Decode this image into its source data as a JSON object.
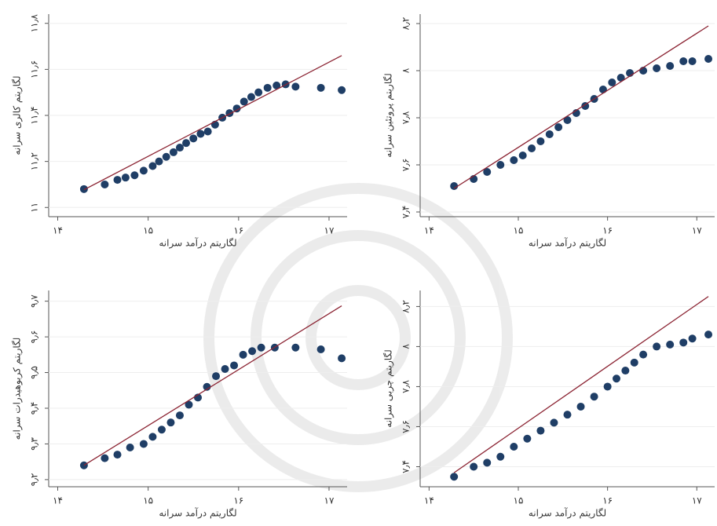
{
  "chart_data": [
    {
      "type": "scatter",
      "x_label": "لگاریتم درآمد سرانه",
      "y_label": "لگاریتم کالری سرانه",
      "xlim": [
        13.9,
        17.2
      ],
      "ylim": [
        10.96,
        11.84
      ],
      "xticks": [
        {
          "value": 14,
          "label": "۱۴"
        },
        {
          "value": 15,
          "label": "۱۵"
        },
        {
          "value": 16,
          "label": "۱۶"
        },
        {
          "value": 17,
          "label": "۱۷"
        }
      ],
      "yticks": [
        {
          "value": 11,
          "label": "۱۱"
        },
        {
          "value": 11.2,
          "label": "۱۱٫۲"
        },
        {
          "value": 11.4,
          "label": "۱۱٫۴"
        },
        {
          "value": 11.6,
          "label": "۱۱٫۶"
        },
        {
          "value": 11.8,
          "label": "۱۱٫۸"
        }
      ],
      "grid": true,
      "color": "#1f3e66",
      "x": [
        14.29,
        14.52,
        14.66,
        14.75,
        14.85,
        14.95,
        15.05,
        15.12,
        15.2,
        15.28,
        15.35,
        15.42,
        15.5,
        15.58,
        15.66,
        15.74,
        15.82,
        15.9,
        15.98,
        16.06,
        16.14,
        16.22,
        16.32,
        16.42,
        16.52,
        16.63,
        16.91,
        17.14
      ],
      "values": [
        11.08,
        11.1,
        11.12,
        11.13,
        11.14,
        11.16,
        11.18,
        11.2,
        11.22,
        11.24,
        11.26,
        11.28,
        11.3,
        11.32,
        11.33,
        11.36,
        11.39,
        11.41,
        11.43,
        11.46,
        11.48,
        11.5,
        11.52,
        11.53,
        11.535,
        11.525,
        11.52,
        11.51
      ],
      "fit": {
        "color": "#8b2332",
        "x": [
          14.29,
          17.14
        ],
        "values": [
          11.077,
          11.66
        ]
      }
    },
    {
      "type": "scatter",
      "x_label": "لگاریتم درآمد سرانه",
      "y_label": "لگاریتم پروتئین سرانه",
      "xlim": [
        13.9,
        17.2
      ],
      "ylim": [
        7.38,
        8.24
      ],
      "xticks": [
        {
          "value": 14,
          "label": "۱۴"
        },
        {
          "value": 15,
          "label": "۱۵"
        },
        {
          "value": 16,
          "label": "۱۶"
        },
        {
          "value": 17,
          "label": "۱۷"
        }
      ],
      "yticks": [
        {
          "value": 7.4,
          "label": "۷٫۴"
        },
        {
          "value": 7.6,
          "label": "۷٫۶"
        },
        {
          "value": 7.8,
          "label": "۷٫۸"
        },
        {
          "value": 8,
          "label": "۸"
        },
        {
          "value": 8.2,
          "label": "۸٫۲"
        }
      ],
      "grid": true,
      "color": "#1f3e66",
      "x": [
        14.28,
        14.5,
        14.65,
        14.8,
        14.95,
        15.05,
        15.15,
        15.25,
        15.35,
        15.45,
        15.55,
        15.65,
        15.75,
        15.85,
        15.95,
        16.05,
        16.15,
        16.25,
        16.4,
        16.55,
        16.7,
        16.85,
        16.95,
        17.13
      ],
      "values": [
        7.51,
        7.54,
        7.57,
        7.6,
        7.62,
        7.64,
        7.67,
        7.7,
        7.73,
        7.76,
        7.79,
        7.82,
        7.85,
        7.88,
        7.92,
        7.95,
        7.97,
        7.99,
        8.0,
        8.01,
        8.02,
        8.04,
        8.04,
        8.05
      ],
      "fit": {
        "color": "#8b2332",
        "x": [
          14.28,
          17.13
        ],
        "values": [
          7.5,
          8.19
        ]
      }
    },
    {
      "type": "scatter",
      "x_label": "لگاریتم درآمد سرانه",
      "y_label": "لگاریتم کربوهیدرات سرانه",
      "xlim": [
        13.9,
        17.2
      ],
      "ylim": [
        9.18,
        9.73
      ],
      "xticks": [
        {
          "value": 14,
          "label": "۱۴"
        },
        {
          "value": 15,
          "label": "۱۵"
        },
        {
          "value": 16,
          "label": "۱۶"
        },
        {
          "value": 17,
          "label": "۱۷"
        }
      ],
      "yticks": [
        {
          "value": 9.2,
          "label": "۹٫۲"
        },
        {
          "value": 9.3,
          "label": "۹٫۳"
        },
        {
          "value": 9.4,
          "label": "۹٫۴"
        },
        {
          "value": 9.5,
          "label": "۹٫۵"
        },
        {
          "value": 9.6,
          "label": "۹٫۶"
        },
        {
          "value": 9.7,
          "label": "۹٫۷"
        }
      ],
      "grid": true,
      "color": "#1f3e66",
      "x": [
        14.29,
        14.52,
        14.66,
        14.8,
        14.95,
        15.05,
        15.15,
        15.25,
        15.35,
        15.45,
        15.55,
        15.65,
        15.75,
        15.85,
        15.95,
        16.05,
        16.15,
        16.25,
        16.4,
        16.63,
        16.91,
        17.14
      ],
      "values": [
        9.24,
        9.26,
        9.27,
        9.29,
        9.3,
        9.32,
        9.34,
        9.36,
        9.38,
        9.41,
        9.43,
        9.46,
        9.49,
        9.51,
        9.52,
        9.55,
        9.56,
        9.57,
        9.57,
        9.57,
        9.565,
        9.54
      ],
      "fit": {
        "color": "#8b2332",
        "x": [
          14.29,
          17.14
        ],
        "values": [
          9.24,
          9.687
        ]
      }
    },
    {
      "type": "scatter",
      "x_label": "لگاریتم درآمد سرانه",
      "y_label": "لگاریتم چربی سرانه",
      "xlim": [
        13.9,
        17.2
      ],
      "ylim": [
        7.3,
        8.28
      ],
      "xticks": [
        {
          "value": 14,
          "label": "۱۴"
        },
        {
          "value": 15,
          "label": "۱۵"
        },
        {
          "value": 16,
          "label": "۱۶"
        },
        {
          "value": 17,
          "label": "۱۷"
        }
      ],
      "yticks": [
        {
          "value": 7.4,
          "label": "۷٫۴"
        },
        {
          "value": 7.6,
          "label": "۷٫۶"
        },
        {
          "value": 7.8,
          "label": "۷٫۸"
        },
        {
          "value": 8,
          "label": "۸"
        },
        {
          "value": 8.2,
          "label": "۸٫۲"
        }
      ],
      "grid": true,
      "color": "#1f3e66",
      "x": [
        14.28,
        14.5,
        14.65,
        14.8,
        14.95,
        15.1,
        15.25,
        15.4,
        15.55,
        15.7,
        15.85,
        16.0,
        16.1,
        16.2,
        16.3,
        16.4,
        16.55,
        16.7,
        16.85,
        16.95,
        17.13
      ],
      "values": [
        7.35,
        7.4,
        7.42,
        7.45,
        7.5,
        7.54,
        7.58,
        7.62,
        7.66,
        7.7,
        7.75,
        7.8,
        7.84,
        7.88,
        7.92,
        7.96,
        8.0,
        8.01,
        8.02,
        8.04,
        8.06
      ],
      "fit": {
        "color": "#8b2332",
        "x": [
          14.28,
          17.13
        ],
        "values": [
          7.37,
          8.25
        ]
      }
    }
  ]
}
